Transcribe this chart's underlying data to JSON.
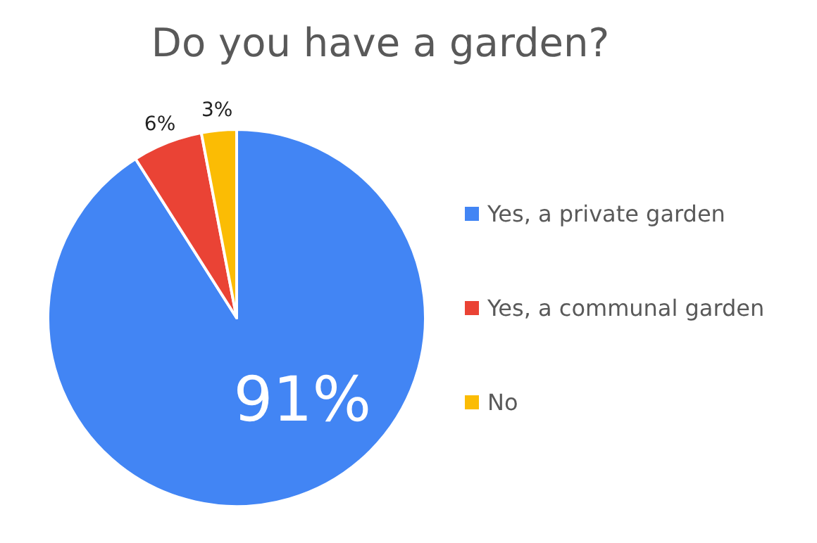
{
  "chart_data": {
    "type": "pie",
    "title": "Do you have a garden?",
    "categories": [
      "Yes, a private garden",
      "Yes, a communal garden",
      "No"
    ],
    "values": [
      91,
      6,
      3
    ],
    "value_labels": [
      "91%",
      "6%",
      "3%"
    ],
    "colors": [
      "#4285f4",
      "#ea4335",
      "#fbbc04"
    ],
    "legend": "right"
  }
}
